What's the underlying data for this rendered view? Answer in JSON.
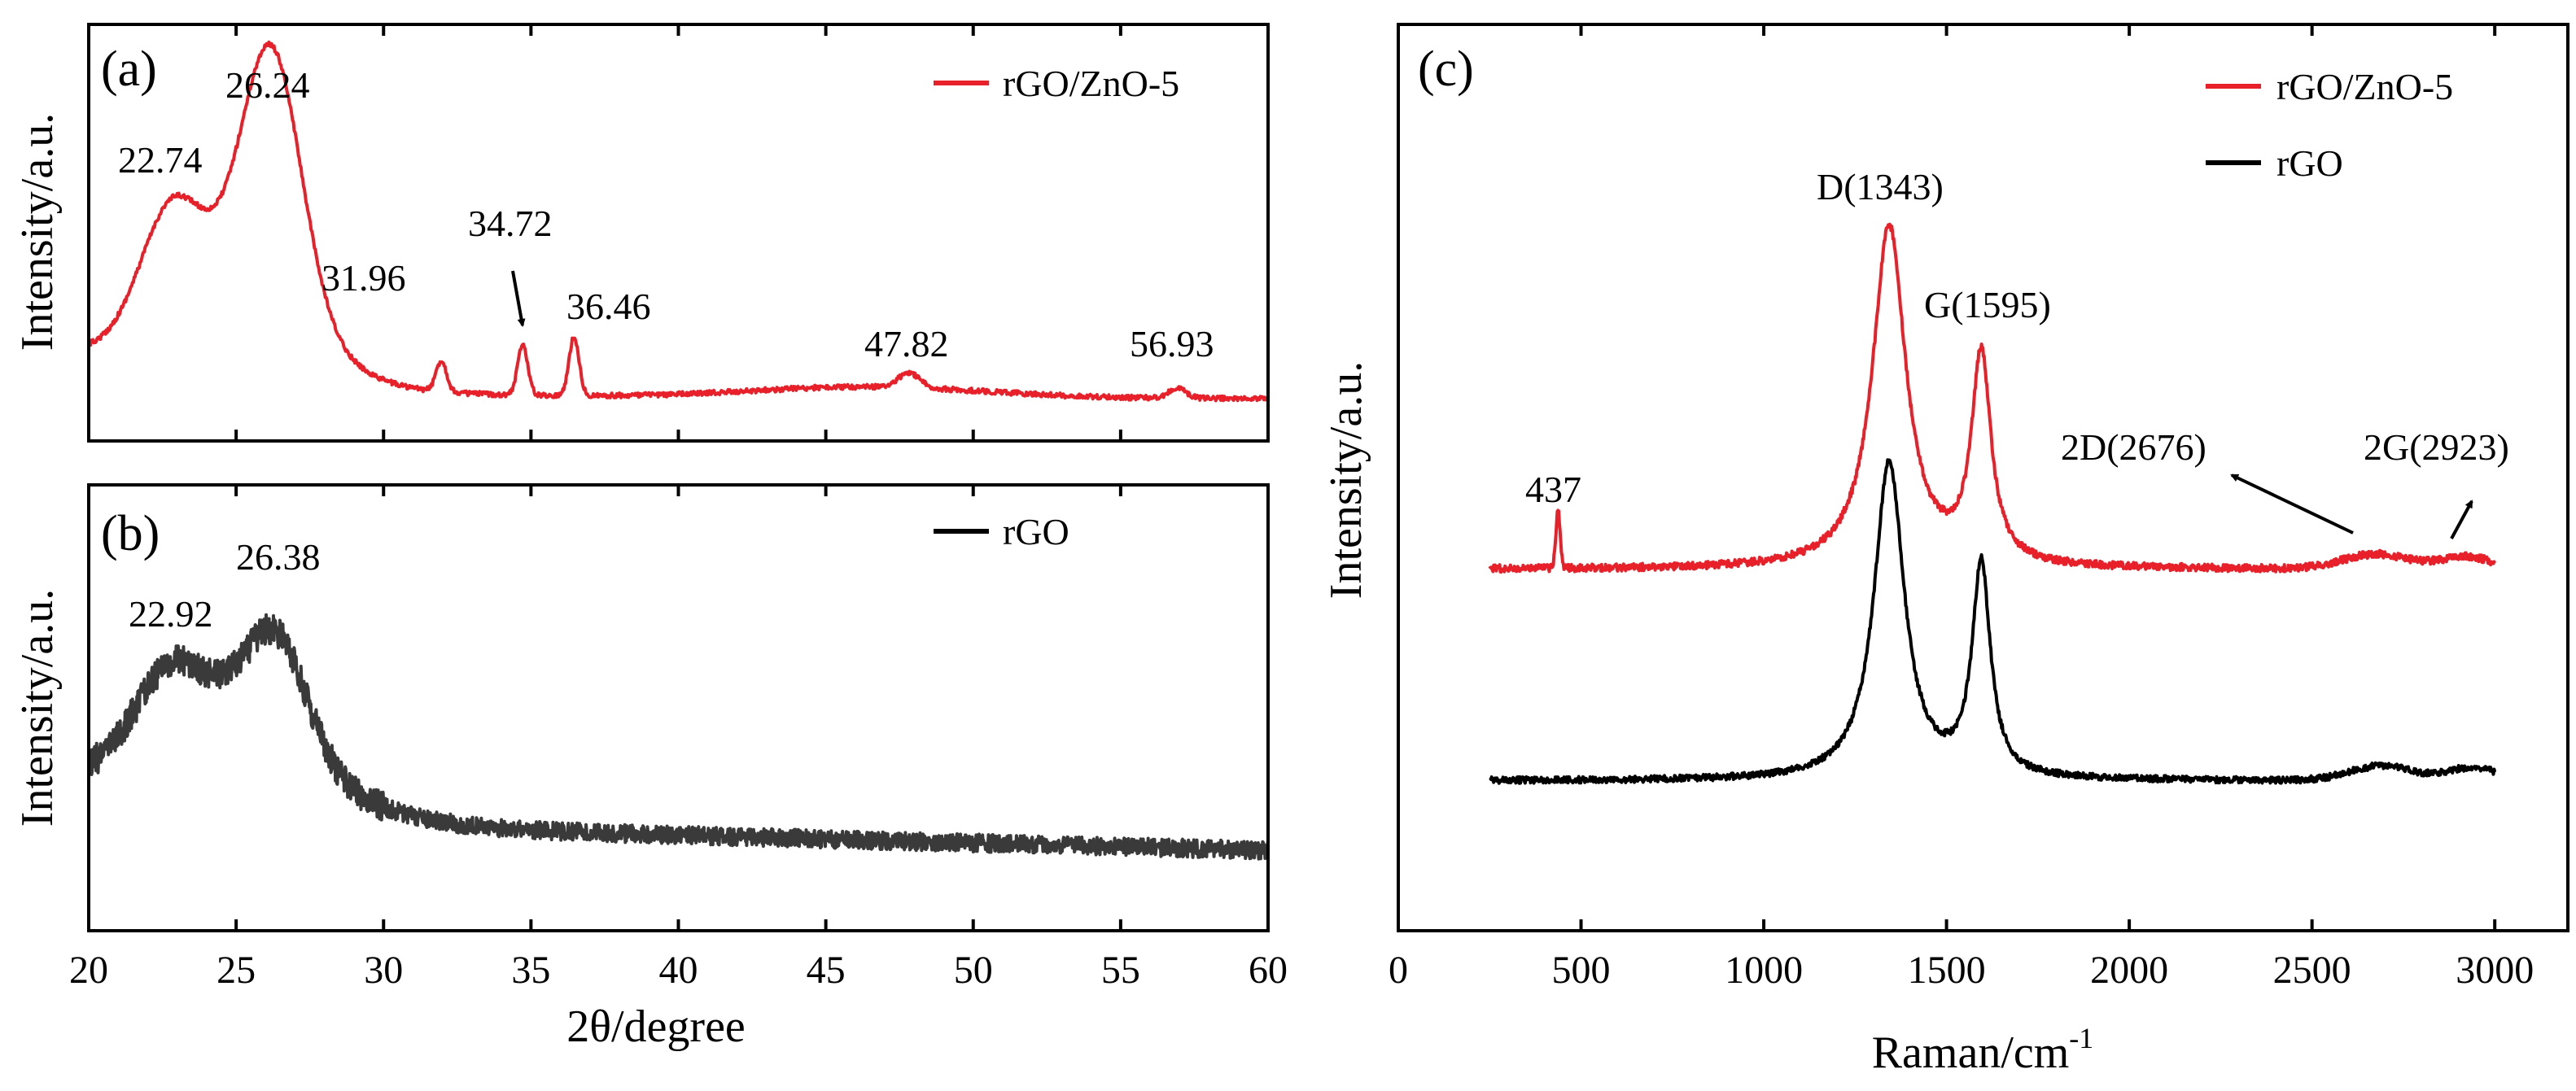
{
  "chart_data": [
    {
      "id": "a",
      "type": "line",
      "panel_label": "(a)",
      "ylabel": "Intensity/a.u.",
      "xlim": [
        20,
        60
      ],
      "x_ticks": [
        "20",
        "25",
        "30",
        "35",
        "40",
        "45",
        "50",
        "55",
        "60"
      ],
      "legend": "rGO/ZnO-5",
      "color": "#e8202a",
      "series": [
        {
          "name": "rGO/ZnO-5",
          "values": "XRD pattern, broad peaks at 22.74 and 26.24, sharp ZnO peaks at 31.96, 34.72, 36.46, 47.82, 56.93"
        }
      ],
      "peaks": [
        {
          "x": 22.74,
          "label": "22.74"
        },
        {
          "x": 26.24,
          "label": "26.24"
        },
        {
          "x": 31.96,
          "label": "31.96"
        },
        {
          "x": 34.72,
          "label": "34.72"
        },
        {
          "x": 36.46,
          "label": "36.46"
        },
        {
          "x": 47.82,
          "label": "47.82"
        },
        {
          "x": 56.93,
          "label": "56.93"
        }
      ]
    },
    {
      "id": "b",
      "type": "line",
      "panel_label": "(b)",
      "ylabel": "Intensity/a.u.",
      "xlabel": "2θ/degree",
      "xlim": [
        20,
        60
      ],
      "x_ticks": [
        "20",
        "25",
        "30",
        "35",
        "40",
        "45",
        "50",
        "55",
        "60"
      ],
      "legend": "rGO",
      "color": "#3a3a3a",
      "series": [
        {
          "name": "rGO",
          "values": "XRD pattern, noisy broad peaks at 22.92 and 26.38"
        }
      ],
      "peaks": [
        {
          "x": 22.92,
          "label": "22.92"
        },
        {
          "x": 26.38,
          "label": "26.38"
        }
      ]
    },
    {
      "id": "c",
      "type": "line",
      "panel_label": "(c)",
      "ylabel": "Intensity/a.u.",
      "xlabel_main": "Raman/cm",
      "xlabel_sup": "-1",
      "xlim": [
        0,
        3200
      ],
      "x_ticks": [
        "0",
        "500",
        "1000",
        "1500",
        "2000",
        "2500",
        "3000"
      ],
      "legend": [
        {
          "name": "rGO/ZnO-5",
          "color": "#e8202a"
        },
        {
          "name": "rGO",
          "color": "#000000"
        }
      ],
      "series": [
        {
          "name": "rGO/ZnO-5",
          "values": "Raman spectrum, 250-3000 cm-1, peaks at 437, D(1343), G(1595), 2D(2676), 2G(2923)"
        },
        {
          "name": "rGO",
          "values": "Raman spectrum, 250-3000 cm-1, D and G bands"
        }
      ],
      "peak_labels": [
        "437",
        "D(1343)",
        "G(1595)",
        "2D(2676)",
        "2G(2923)"
      ]
    }
  ]
}
